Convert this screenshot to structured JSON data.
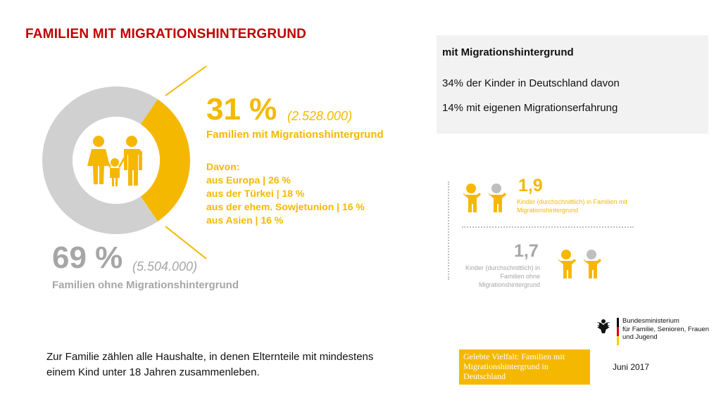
{
  "title": "FAMILIEN MIT MIGRATIONSHINTERGRUND",
  "donut": {
    "with": {
      "percent": "31 %",
      "count": "(2.528.000)",
      "label": "Familien mit Migrationshintergrund",
      "share": 0.31,
      "color": "#f5b800"
    },
    "without": {
      "percent": "69 %",
      "count": "(5.504.000)",
      "label": "Familien ohne Migrationshintergrund",
      "share": 0.69,
      "color": "#d0d0d0"
    },
    "breakdown": {
      "heading": "Davon:",
      "items": [
        "aus Europa | 26 %",
        "aus der Türkei | 18 %",
        "aus der ehem. Sowjetunion | 16 %",
        "aus Asien | 16 %"
      ]
    }
  },
  "infobox": {
    "heading": "mit Migrationshintergrund",
    "line1": "34% der Kinder in Deutschland davon",
    "line2": "14% mit eigenen Migrationserfahrung"
  },
  "children": {
    "with": {
      "value": "1,9",
      "label": "Kinder (durchschnittlich) in Familien mit Migrationshintergrund"
    },
    "without": {
      "value": "1,7",
      "label": "Kinder (durchschnittlich) in Familien ohne Migrationshintergrund"
    }
  },
  "footnote": "Zur Familie zählen alle Haushalte, in denen Elternteile mit mindestens einem Kind unter 18 Jahren zusammenleben.",
  "brochure": "Gelebte Vielfalt: Familien mit Migrationshintergrund in Deutschland",
  "ministry": {
    "line1": "Bundesministerium",
    "line2": "für Familie, Senioren, Frauen",
    "line3": "und Jugend"
  },
  "date": "Juni 2017",
  "colors": {
    "accent": "#f5b800",
    "grey": "#a6a6a6",
    "title": "#c00000"
  }
}
